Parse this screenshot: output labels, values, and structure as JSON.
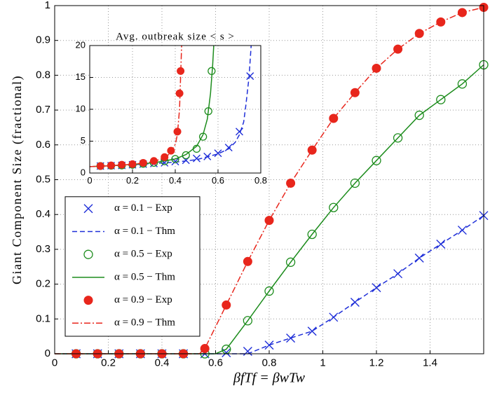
{
  "chart_data": [
    {
      "type": "line",
      "x_label": "βfTf = βwTw",
      "y_label": "Giant Component Size (fractional)",
      "xlim": [
        0,
        1.6
      ],
      "ylim": [
        0,
        1
      ],
      "xticks": [
        0,
        0.2,
        0.4,
        0.6,
        0.8,
        1,
        1.2,
        1.4
      ],
      "yticks": [
        0,
        0.1,
        0.2,
        0.3,
        0.4,
        0.5,
        0.6,
        0.7,
        0.8,
        0.9,
        1
      ],
      "grid": true,
      "legend": "lower left",
      "series": [
        {
          "name": "α = 0.1 − Exp",
          "color": "#1f2fd8",
          "marker": "x",
          "linestyle": "none",
          "x": [
            0.08,
            0.16,
            0.24,
            0.32,
            0.4,
            0.48,
            0.56,
            0.64,
            0.72,
            0.8,
            0.88,
            0.96,
            1.04,
            1.12,
            1.2,
            1.28,
            1.36,
            1.44,
            1.52,
            1.6
          ],
          "values": [
            0,
            0,
            0,
            0,
            0,
            0,
            0,
            0.003,
            0.007,
            0.025,
            0.045,
            0.065,
            0.105,
            0.148,
            0.19,
            0.23,
            0.275,
            0.315,
            0.355,
            0.397
          ]
        },
        {
          "name": "α = 0.1 − Thm",
          "color": "#1f2fd8",
          "marker": "none",
          "linestyle": "dashed",
          "x": [
            0,
            0.72,
            0.8,
            0.88,
            0.96,
            1.04,
            1.12,
            1.2,
            1.28,
            1.36,
            1.44,
            1.52,
            1.6
          ],
          "values": [
            0,
            0,
            0.025,
            0.045,
            0.065,
            0.105,
            0.148,
            0.19,
            0.23,
            0.275,
            0.315,
            0.355,
            0.397
          ]
        },
        {
          "name": "α = 0.5 − Exp",
          "color": "#1c8c1c",
          "marker": "o",
          "linestyle": "none",
          "x": [
            0.08,
            0.16,
            0.24,
            0.32,
            0.4,
            0.48,
            0.56,
            0.64,
            0.72,
            0.8,
            0.88,
            0.96,
            1.04,
            1.12,
            1.2,
            1.28,
            1.36,
            1.44,
            1.52,
            1.6
          ],
          "values": [
            0,
            0,
            0,
            0,
            0,
            0,
            0,
            0.013,
            0.095,
            0.18,
            0.263,
            0.343,
            0.42,
            0.49,
            0.555,
            0.62,
            0.685,
            0.73,
            0.775,
            0.83
          ]
        },
        {
          "name": "α = 0.5 − Thm",
          "color": "#1c8c1c",
          "marker": "none",
          "linestyle": "solid",
          "x": [
            0,
            0.6,
            0.64,
            0.72,
            0.8,
            0.88,
            0.96,
            1.04,
            1.12,
            1.2,
            1.28,
            1.36,
            1.44,
            1.52,
            1.6
          ],
          "values": [
            0,
            0,
            0.013,
            0.095,
            0.18,
            0.263,
            0.343,
            0.42,
            0.49,
            0.555,
            0.62,
            0.685,
            0.73,
            0.775,
            0.83
          ]
        },
        {
          "name": "α = 0.9 − Exp",
          "color": "#e8261c",
          "marker": "dot",
          "linestyle": "none",
          "x": [
            0.08,
            0.16,
            0.24,
            0.32,
            0.4,
            0.48,
            0.56,
            0.64,
            0.72,
            0.8,
            0.88,
            0.96,
            1.04,
            1.12,
            1.2,
            1.28,
            1.36,
            1.44,
            1.52,
            1.6
          ],
          "values": [
            0,
            0,
            0,
            0,
            0,
            0,
            0.015,
            0.14,
            0.265,
            0.383,
            0.49,
            0.585,
            0.676,
            0.75,
            0.82,
            0.875,
            0.92,
            0.953,
            0.98,
            0.995
          ]
        },
        {
          "name": "α = 0.9 − Thm",
          "color": "#e8261c",
          "marker": "none",
          "linestyle": "dashdot",
          "x": [
            0,
            0.54,
            0.56,
            0.64,
            0.72,
            0.8,
            0.88,
            0.96,
            1.04,
            1.12,
            1.2,
            1.28,
            1.36,
            1.44,
            1.52,
            1.6
          ],
          "values": [
            0,
            0,
            0.015,
            0.14,
            0.265,
            0.383,
            0.49,
            0.585,
            0.676,
            0.75,
            0.82,
            0.875,
            0.92,
            0.953,
            0.98,
            0.995
          ]
        }
      ]
    },
    {
      "type": "line",
      "title": "Avg. outbreak size < s >",
      "xlim": [
        0,
        0.8
      ],
      "ylim": [
        0,
        20
      ],
      "xticks": [
        0,
        0.2,
        0.4,
        0.6,
        0.8
      ],
      "yticks": [
        0,
        5,
        10,
        15,
        20
      ],
      "grid": true,
      "series": [
        {
          "color": "#1f2fd8",
          "marker": "x",
          "linestyle": "none",
          "x": [
            0.05,
            0.1,
            0.15,
            0.2,
            0.25,
            0.3,
            0.35,
            0.4,
            0.45,
            0.5,
            0.55,
            0.6,
            0.65,
            0.7,
            0.75
          ],
          "values": [
            1.1,
            1.15,
            1.2,
            1.3,
            1.4,
            1.5,
            1.6,
            1.8,
            2,
            2.3,
            2.6,
            3.1,
            4,
            6.5,
            15.2
          ]
        },
        {
          "color": "#1f2fd8",
          "marker": "none",
          "linestyle": "dashed",
          "x": [
            0,
            0.2,
            0.4,
            0.5,
            0.6,
            0.65,
            0.68,
            0.7,
            0.72,
            0.73,
            0.745,
            0.755
          ],
          "values": [
            1,
            1.3,
            1.7,
            2.1,
            3,
            3.8,
            4.8,
            6,
            8,
            10.5,
            15,
            20
          ]
        },
        {
          "color": "#1c8c1c",
          "marker": "o",
          "linestyle": "none",
          "x": [
            0.05,
            0.1,
            0.15,
            0.2,
            0.25,
            0.3,
            0.35,
            0.4,
            0.45,
            0.5,
            0.53,
            0.555,
            0.57
          ],
          "values": [
            1.1,
            1.15,
            1.2,
            1.3,
            1.45,
            1.6,
            1.85,
            2.2,
            2.8,
            3.8,
            5.7,
            9.7,
            16
          ]
        },
        {
          "color": "#1c8c1c",
          "marker": "none",
          "linestyle": "solid",
          "x": [
            0,
            0.1,
            0.2,
            0.3,
            0.4,
            0.45,
            0.5,
            0.53,
            0.55,
            0.565,
            0.575,
            0.58
          ],
          "values": [
            1,
            1.15,
            1.35,
            1.6,
            2.2,
            2.9,
            4.2,
            6,
            8.5,
            12.5,
            17,
            20
          ]
        },
        {
          "color": "#e8261c",
          "marker": "dot",
          "linestyle": "none",
          "x": [
            0.05,
            0.1,
            0.15,
            0.2,
            0.25,
            0.3,
            0.35,
            0.38,
            0.41,
            0.42,
            0.425
          ],
          "values": [
            1.1,
            1.2,
            1.3,
            1.4,
            1.6,
            1.9,
            2.5,
            3.5,
            6.5,
            12.5,
            16
          ]
        },
        {
          "color": "#e8261c",
          "marker": "none",
          "linestyle": "dashdot",
          "x": [
            0,
            0.1,
            0.2,
            0.3,
            0.35,
            0.38,
            0.4,
            0.41,
            0.42,
            0.425,
            0.43
          ],
          "values": [
            1,
            1.15,
            1.35,
            1.8,
            2.4,
            3.2,
            4.5,
            6,
            10,
            15,
            20
          ]
        }
      ]
    }
  ]
}
